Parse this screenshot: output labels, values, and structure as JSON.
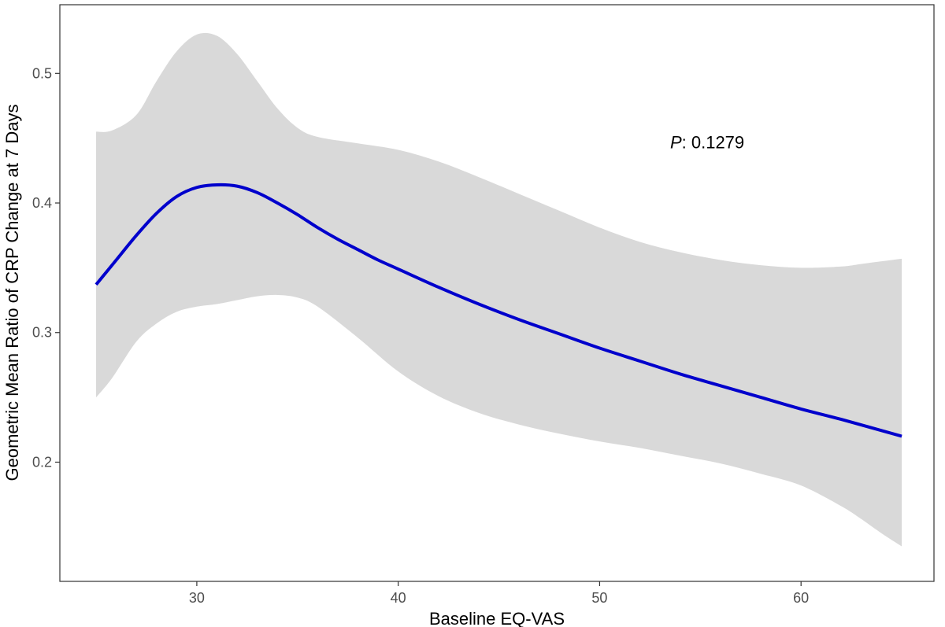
{
  "chart_data": {
    "type": "line",
    "xlabel": "Baseline EQ-VAS",
    "ylabel": "Geometric Mean Ratio of CRP Change at 7 Days",
    "xlim": [
      23.2,
      66.6
    ],
    "ylim": [
      0.108,
      0.553
    ],
    "x_ticks": [
      30,
      40,
      50,
      60
    ],
    "y_ticks": [
      0.2,
      0.3,
      0.4,
      0.5
    ],
    "x_tick_labels": [
      "30",
      "40",
      "50",
      "60"
    ],
    "y_tick_labels": [
      "0.2",
      "0.3",
      "0.4",
      "0.5"
    ],
    "grid": false,
    "annotation": {
      "p_label": "P",
      "p_value": ": 0.1279",
      "x": 53.5,
      "y": 0.447
    },
    "series": [
      {
        "x": [
          25,
          26,
          27,
          28,
          29,
          30,
          31,
          32,
          33,
          34,
          35,
          36,
          37,
          38,
          39,
          40,
          42,
          44,
          46,
          48,
          50,
          52,
          54,
          56,
          58,
          60,
          62,
          65
        ],
        "y": [
          0.337,
          0.356,
          0.375,
          0.392,
          0.405,
          0.412,
          0.414,
          0.413,
          0.408,
          0.4,
          0.391,
          0.381,
          0.372,
          0.364,
          0.356,
          0.349,
          0.335,
          0.322,
          0.31,
          0.299,
          0.288,
          0.278,
          0.268,
          0.259,
          0.25,
          0.241,
          0.233,
          0.22
        ],
        "color": "#0000cc"
      }
    ],
    "ci_band": {
      "x": [
        25,
        25.8,
        27,
        28,
        29,
        30,
        31,
        32,
        33,
        34,
        35,
        36,
        38,
        40,
        42,
        44,
        46,
        48,
        50,
        52,
        54,
        56,
        58,
        60,
        62,
        63,
        64,
        65
      ],
      "upper": [
        0.455,
        0.456,
        0.468,
        0.494,
        0.517,
        0.53,
        0.529,
        0.515,
        0.494,
        0.473,
        0.458,
        0.451,
        0.446,
        0.441,
        0.432,
        0.42,
        0.407,
        0.394,
        0.381,
        0.37,
        0.362,
        0.356,
        0.352,
        0.35,
        0.351,
        0.353,
        0.355,
        0.357
      ],
      "lower": [
        0.25,
        0.265,
        0.293,
        0.307,
        0.316,
        0.32,
        0.322,
        0.325,
        0.328,
        0.329,
        0.327,
        0.32,
        0.296,
        0.27,
        0.251,
        0.238,
        0.229,
        0.222,
        0.216,
        0.211,
        0.205,
        0.199,
        0.191,
        0.182,
        0.166,
        0.156,
        0.145,
        0.135
      ],
      "color": "#d9d9d9"
    }
  }
}
